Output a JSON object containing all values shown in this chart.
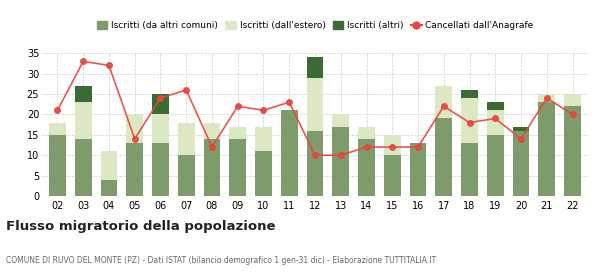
{
  "years": [
    "02",
    "03",
    "04",
    "05",
    "06",
    "07",
    "08",
    "09",
    "10",
    "11",
    "12",
    "13",
    "14",
    "15",
    "16",
    "17",
    "18",
    "19",
    "20",
    "21",
    "22"
  ],
  "iscritti_altri_comuni": [
    15,
    14,
    4,
    13,
    13,
    10,
    14,
    14,
    11,
    21,
    16,
    17,
    14,
    10,
    13,
    19,
    13,
    15,
    16,
    23,
    22
  ],
  "iscritti_estero": [
    3,
    9,
    7,
    7,
    7,
    8,
    4,
    3,
    6,
    0,
    13,
    3,
    3,
    5,
    0,
    8,
    11,
    6,
    0,
    2,
    3
  ],
  "iscritti_altri": [
    0,
    4,
    0,
    0,
    5,
    0,
    0,
    0,
    0,
    0,
    5,
    0,
    0,
    0,
    0,
    0,
    2,
    2,
    1,
    0,
    0
  ],
  "cancellati": [
    21,
    33,
    32,
    14,
    24,
    26,
    12,
    22,
    21,
    23,
    10,
    10,
    12,
    12,
    12,
    22,
    18,
    19,
    14,
    24,
    20
  ],
  "color_altri_comuni": "#7d9b6b",
  "color_estero": "#dce8c4",
  "color_altri": "#3a6b35",
  "color_cancellati": "#e8453c",
  "title": "Flusso migratorio della popolazione",
  "subtitle": "COMUNE DI RUVO DEL MONTE (PZ) - Dati ISTAT (bilancio demografico 1 gen-31 dic) - Elaborazione TUTTITALIA.IT",
  "legend_labels": [
    "Iscritti (da altri comuni)",
    "Iscritti (dall'estero)",
    "Iscritti (altri)",
    "Cancellati dall'Anagrafe"
  ],
  "ylim": [
    0,
    35
  ],
  "yticks": [
    0,
    5,
    10,
    15,
    20,
    25,
    30,
    35
  ],
  "background_color": "#ffffff",
  "grid_color": "#cccccc"
}
